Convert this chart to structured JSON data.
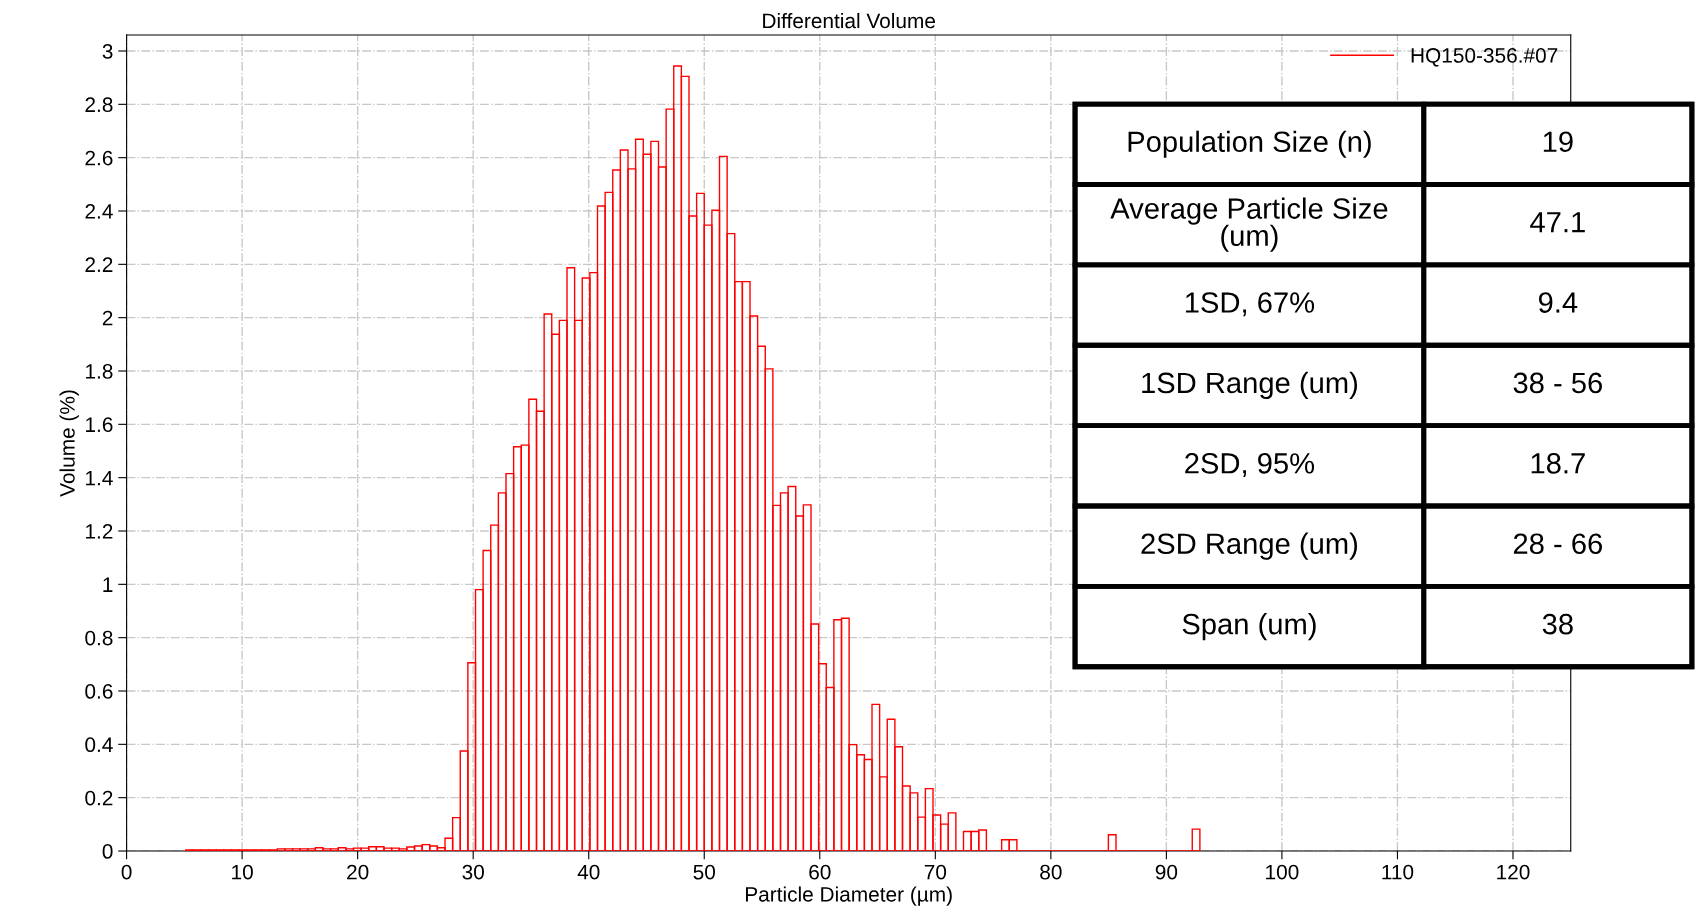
{
  "chart_data": {
    "type": "histogram",
    "title": "Differential Volume",
    "xlabel": "Particle Diameter (µm)",
    "ylabel": "Volume (%)",
    "bins": [
      5.12,
      5.78,
      6.44,
      7.1,
      7.76,
      8.42,
      9.08,
      9.74,
      10.4,
      11.06,
      11.72,
      12.38,
      13.04,
      13.7,
      14.36,
      15.02,
      15.68,
      16.34,
      17.0,
      17.66,
      18.32,
      18.98,
      19.64,
      20.3,
      20.96,
      21.62,
      22.28,
      22.94,
      23.6,
      24.26,
      24.92,
      25.58,
      26.24,
      26.9,
      27.56,
      28.22,
      28.88,
      29.54,
      30.2,
      30.86,
      31.52,
      32.18,
      32.84,
      33.5,
      34.16,
      34.82,
      35.48,
      36.14,
      36.8,
      37.46,
      38.12,
      38.78,
      39.44,
      40.1,
      40.76,
      41.42,
      42.08,
      42.74,
      43.4,
      44.06,
      44.72,
      45.38,
      46.04,
      46.7,
      47.36,
      48.02,
      48.68,
      49.34,
      50.0,
      50.66,
      51.32,
      51.98,
      52.64,
      53.3,
      53.96,
      54.62,
      55.28,
      55.94,
      56.6,
      57.26,
      57.92,
      58.58,
      59.24,
      59.9,
      60.56,
      61.22,
      61.88,
      62.54,
      63.2,
      63.86,
      64.52,
      65.18,
      65.84,
      66.5,
      67.16,
      67.82,
      68.48,
      69.14,
      69.8,
      70.46,
      71.12,
      71.78,
      72.44,
      73.1,
      73.76,
      74.42,
      75.08,
      75.74,
      76.4,
      77.06,
      77.72,
      78.38,
      79.04,
      79.7,
      80.36,
      81.02,
      81.68,
      82.34,
      83.0,
      83.66,
      84.32,
      84.98,
      85.64,
      86.3,
      86.96,
      87.62,
      88.28,
      88.94,
      89.6,
      90.26,
      90.92,
      91.58,
      92.24,
      92.9
    ],
    "series": [
      {
        "name": "HQ150-356.#07",
        "color": "#ff0000",
        "values": [
          0.004,
          0.004,
          0.004,
          0.004,
          0.004,
          0.004,
          0.004,
          0.004,
          0.004,
          0.004,
          0.004,
          0.004,
          0.008,
          0.008,
          0.008,
          0.008,
          0.008,
          0.012,
          0.008,
          0.008,
          0.012,
          0.008,
          0.011,
          0.011,
          0.016,
          0.016,
          0.011,
          0.011,
          0.008,
          0.015,
          0.019,
          0.024,
          0.019,
          0.012,
          0.048,
          0.125,
          0.375,
          0.706,
          0.98,
          1.127,
          1.222,
          1.343,
          1.415,
          1.516,
          1.522,
          1.694,
          1.649,
          2.014,
          1.938,
          1.99,
          2.187,
          1.99,
          2.149,
          2.169,
          2.419,
          2.47,
          2.554,
          2.629,
          2.558,
          2.669,
          2.613,
          2.661,
          2.565,
          2.782,
          2.944,
          2.905,
          2.381,
          2.466,
          2.347,
          2.403,
          2.605,
          2.315,
          2.135,
          2.135,
          2.006,
          1.893,
          1.808,
          1.296,
          1.343,
          1.367,
          1.256,
          1.298,
          0.851,
          0.702,
          0.613,
          0.867,
          0.873,
          0.399,
          0.361,
          0.343,
          0.55,
          0.278,
          0.494,
          0.391,
          0.244,
          0.218,
          0.127,
          0.234,
          0.135,
          0.101,
          0.143,
          0,
          0.073,
          0.073,
          0.079,
          0,
          0,
          0.042,
          0.042,
          0,
          0,
          0,
          0,
          0,
          0,
          0,
          0,
          0,
          0,
          0,
          0,
          0.061,
          0,
          0,
          0,
          0,
          0,
          0,
          0,
          0,
          0,
          0,
          0.082
        ]
      }
    ],
    "xlim": [
      0,
      125
    ],
    "xticks": [
      0,
      10,
      20,
      30,
      40,
      50,
      60,
      70,
      80,
      90,
      100,
      110,
      120
    ],
    "ylim": [
      0,
      3.06
    ],
    "yticks": [
      0,
      0.2,
      0.4,
      0.6,
      0.8,
      1,
      1.2,
      1.4,
      1.6,
      1.8,
      2,
      2.2,
      2.4,
      2.6,
      2.8,
      3
    ],
    "grid": true,
    "legend": "top right",
    "annotations": [
      "Population Size (n)",
      "19",
      "Average Particle Size\n(um)",
      "47.1",
      "1SD, 67%",
      "9.4",
      "1SD Range (um)",
      "38 - 56",
      "2SD, 95%",
      "18.7",
      "2SD Range (um)",
      "28 - 66",
      "Span (um)",
      "38"
    ]
  }
}
